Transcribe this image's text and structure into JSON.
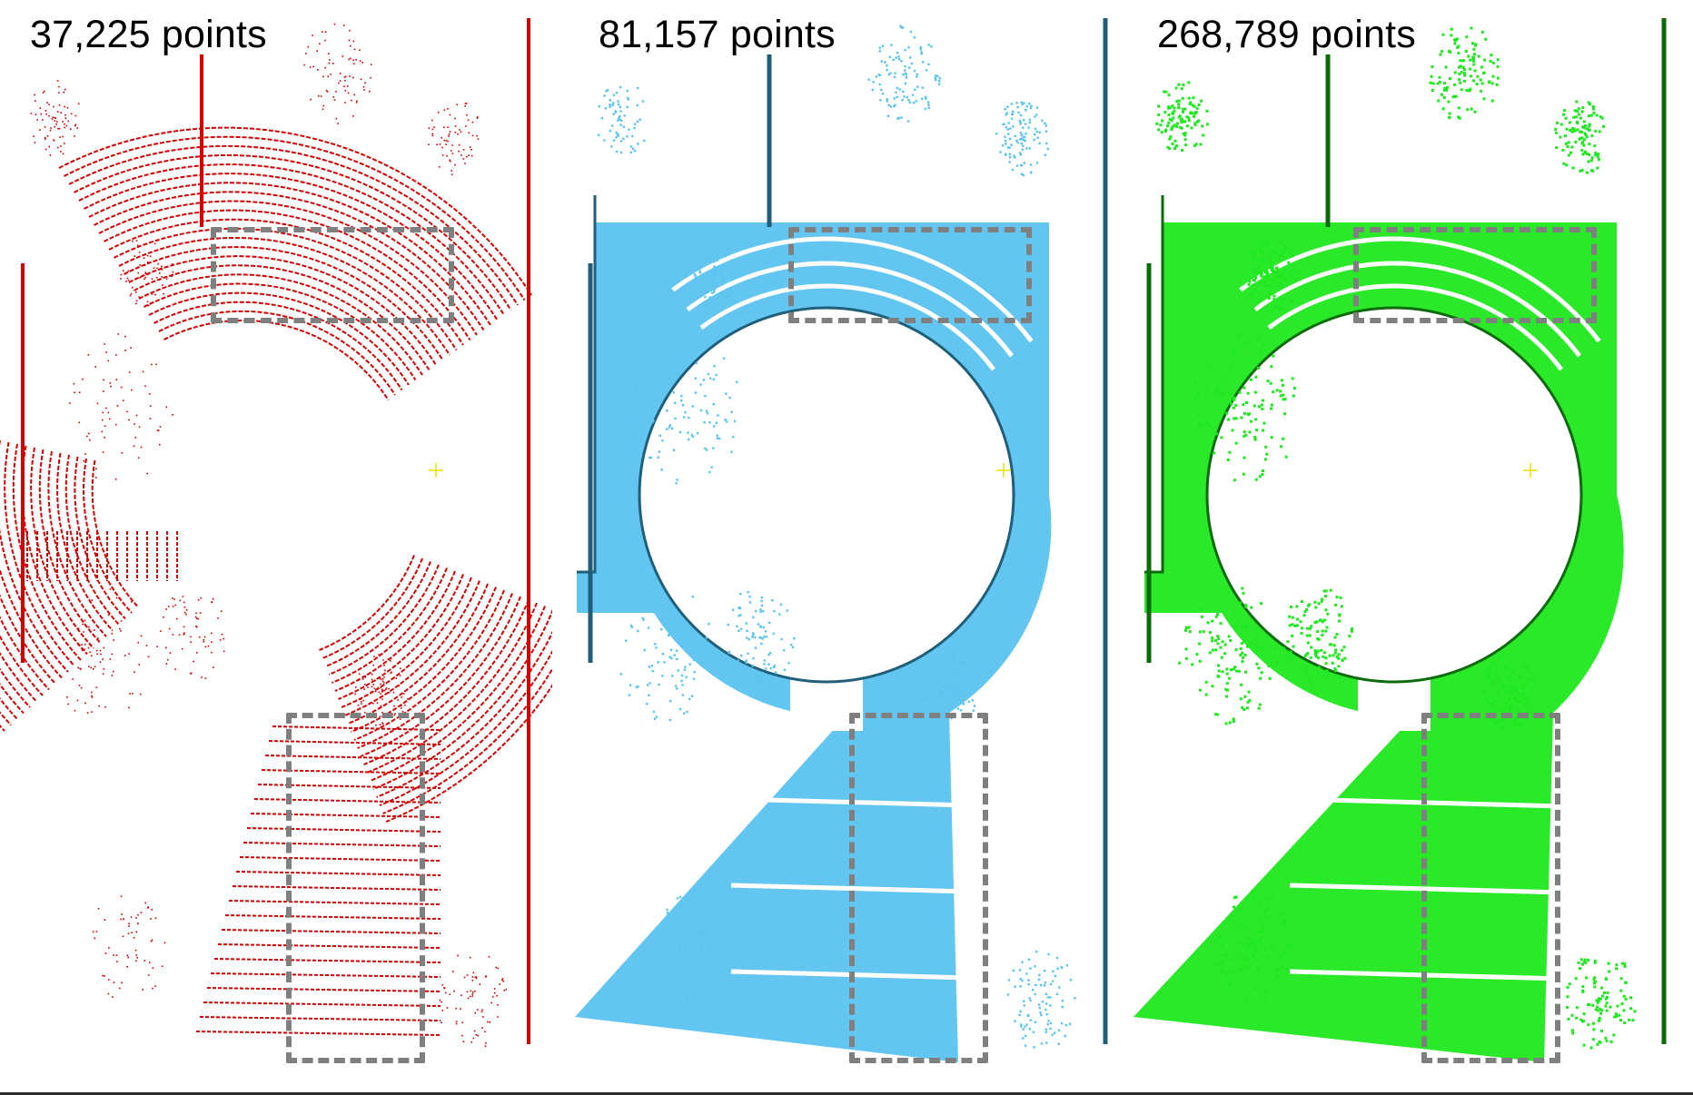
{
  "panels": [
    {
      "label": "37,225 points",
      "color": "#d40000",
      "style": "sparse-rings",
      "density": 37225
    },
    {
      "label": "81,157 points",
      "color": "#5bc3f0",
      "edge_color": "#1f5f7a",
      "style": "medium-surface",
      "density": 81157
    },
    {
      "label": "268,789 points",
      "color": "#1ee81e",
      "edge_color": "#0b6b0b",
      "style": "dense-surface",
      "density": 268789
    }
  ],
  "highlight_box_color": "#7f7f7f"
}
